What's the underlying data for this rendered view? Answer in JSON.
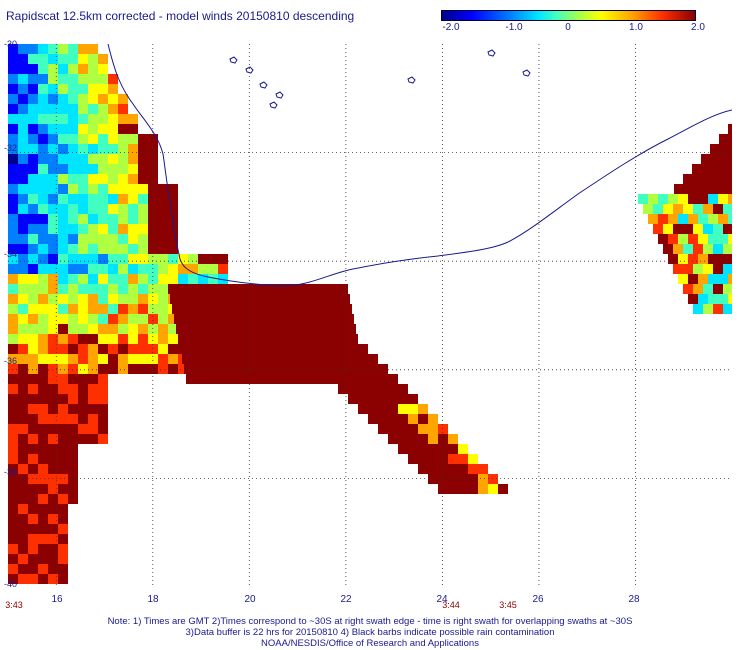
{
  "title": "Rapidscat 12.5km corrected - model winds 20150810 descending",
  "colorbar": {
    "ticks": [
      "-2.0",
      "-1.0",
      "0",
      "1.0",
      "2.0"
    ],
    "range": [
      -2.0,
      2.0
    ],
    "colors": [
      "#00008b",
      "#0000ff",
      "#0080ff",
      "#00e5ff",
      "#40ffc0",
      "#b0ff40",
      "#ffff00",
      "#ffa500",
      "#ff3000",
      "#8b0000"
    ]
  },
  "map": {
    "lon_range": [
      15,
      30
    ],
    "lat_range": [
      -40,
      -30
    ],
    "lat_labels": [
      "-30",
      "-32",
      "-34",
      "-36",
      "-38",
      "-40"
    ],
    "lon_labels": [
      "16",
      "18",
      "20",
      "22",
      "24",
      "26",
      "28"
    ],
    "gridlines": "dotted",
    "coastline_color": "#1a1a8c"
  },
  "time_labels": [
    "3:43",
    "3:44",
    "3:45"
  ],
  "notes": [
    "Note: 1) Times are GMT 2)Times correspond to ~30S at right swath edge - time is right swath for overlapping swaths at ~30S",
    "3)Data buffer is 22 hrs for 20150810 4) Black barbs indicate possible rain contamination",
    "NOAA/NESDIS/Office of Research and Applications"
  ]
}
